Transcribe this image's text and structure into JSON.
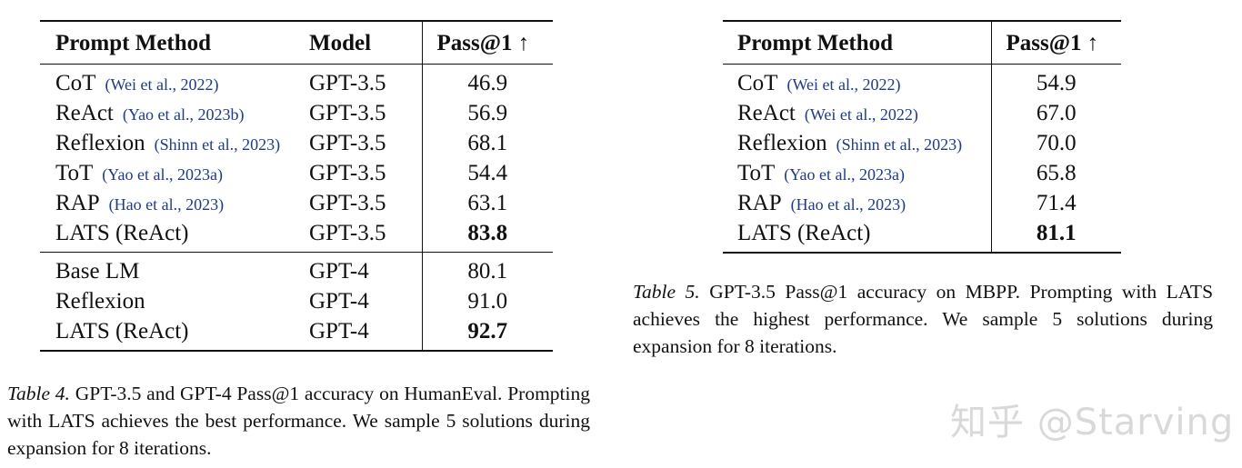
{
  "table4": {
    "headers": {
      "method": "Prompt Method",
      "model": "Model",
      "pass": "Pass@1 ↑"
    },
    "groups": [
      [
        {
          "method": "CoT",
          "cite": "(Wei et al., 2022)",
          "model": "GPT-3.5",
          "pass": "46.9",
          "bold": false
        },
        {
          "method": "ReAct",
          "cite": "(Yao et al., 2023b)",
          "model": "GPT-3.5",
          "pass": "56.9",
          "bold": false
        },
        {
          "method": "Reflexion",
          "cite": "(Shinn et al., 2023)",
          "model": "GPT-3.5",
          "pass": "68.1",
          "bold": false
        },
        {
          "method": "ToT",
          "cite": "(Yao et al., 2023a)",
          "model": "GPT-3.5",
          "pass": "54.4",
          "bold": false
        },
        {
          "method": "RAP",
          "cite": "(Hao et al., 2023)",
          "model": "GPT-3.5",
          "pass": "63.1",
          "bold": false
        },
        {
          "method": "LATS (ReAct)",
          "cite": "",
          "model": "GPT-3.5",
          "pass": "83.8",
          "bold": true
        }
      ],
      [
        {
          "method": "Base LM",
          "cite": "",
          "model": "GPT-4",
          "pass": "80.1",
          "bold": false
        },
        {
          "method": "Reflexion",
          "cite": "",
          "model": "GPT-4",
          "pass": "91.0",
          "bold": false
        },
        {
          "method": "LATS (ReAct)",
          "cite": "",
          "model": "GPT-4",
          "pass": "92.7",
          "bold": true
        }
      ]
    ],
    "caption_label": "Table 4.",
    "caption_text": "GPT-3.5 and GPT-4 Pass@1 accuracy on HumanEval. Prompting with LATS achieves the best performance. We sample 5 solutions during expansion for 8 iterations."
  },
  "table5": {
    "headers": {
      "method": "Prompt Method",
      "pass": "Pass@1 ↑"
    },
    "rows": [
      {
        "method": "CoT",
        "cite": "(Wei et al., 2022)",
        "pass": "54.9",
        "bold": false
      },
      {
        "method": "ReAct",
        "cite": "(Wei et al., 2022)",
        "pass": "67.0",
        "bold": false
      },
      {
        "method": "Reflexion",
        "cite": "(Shinn et al., 2023)",
        "pass": "70.0",
        "bold": false
      },
      {
        "method": "ToT",
        "cite": "(Yao et al., 2023a)",
        "pass": "65.8",
        "bold": false
      },
      {
        "method": "RAP",
        "cite": "(Hao et al., 2023)",
        "pass": "71.4",
        "bold": false
      },
      {
        "method": "LATS (ReAct)",
        "cite": "",
        "pass": "81.1",
        "bold": true
      }
    ],
    "caption_label": "Table 5.",
    "caption_text": "GPT-3.5 Pass@1 accuracy on MBPP. Prompting with LATS achieves the highest performance. We sample 5 solutions during expansion for 8 iterations."
  },
  "watermark": "知乎 @Starving"
}
